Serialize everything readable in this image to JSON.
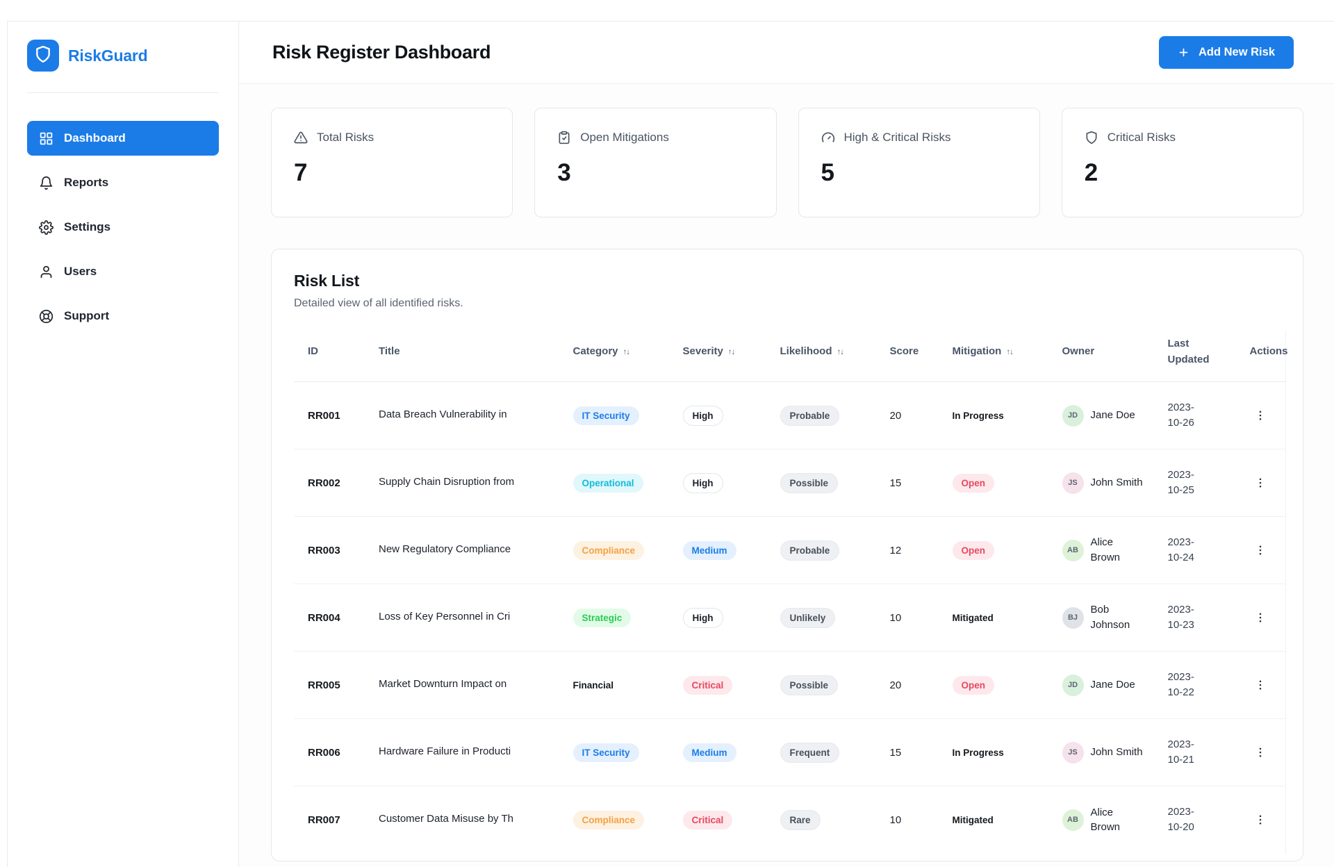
{
  "brand": {
    "name": "RiskGuard"
  },
  "sidebar": {
    "items": [
      {
        "label": "Dashboard",
        "icon": "dashboard-grid-icon",
        "active": true
      },
      {
        "label": "Reports",
        "icon": "bell-icon",
        "active": false
      },
      {
        "label": "Settings",
        "icon": "gear-icon",
        "active": false
      },
      {
        "label": "Users",
        "icon": "user-icon",
        "active": false
      },
      {
        "label": "Support",
        "icon": "life-buoy-icon",
        "active": false
      }
    ]
  },
  "header": {
    "title": "Risk Register Dashboard",
    "add_button_label": "Add New Risk"
  },
  "stats": [
    {
      "label": "Total Risks",
      "value": "7",
      "icon": "alert-triangle-icon"
    },
    {
      "label": "Open Mitigations",
      "value": "3",
      "icon": "clipboard-check-icon"
    },
    {
      "label": "High & Critical Risks",
      "value": "5",
      "icon": "gauge-icon"
    },
    {
      "label": "Critical Risks",
      "value": "2",
      "icon": "shield-icon"
    }
  ],
  "risk_list": {
    "title": "Risk List",
    "subtitle": "Detailed view of all identified risks.",
    "columns": [
      {
        "label": "ID",
        "sortable": false
      },
      {
        "label": "Title",
        "sortable": false
      },
      {
        "label": "Category",
        "sortable": true
      },
      {
        "label": "Severity",
        "sortable": true
      },
      {
        "label": "Likelihood",
        "sortable": true
      },
      {
        "label": "Score",
        "sortable": false
      },
      {
        "label": "Mitigation",
        "sortable": true
      },
      {
        "label": "Owner",
        "sortable": false
      },
      {
        "label": "Last Updated",
        "sortable": false
      },
      {
        "label": "Actions",
        "sortable": false
      }
    ],
    "rows": [
      {
        "id": "RR001",
        "title": "Data Breach Vulnerability in",
        "category": {
          "label": "IT Security",
          "variant": "blue"
        },
        "severity": {
          "label": "High",
          "variant": "outline"
        },
        "likelihood": "Probable",
        "score": "20",
        "mitigation": {
          "label": "In Progress",
          "variant": "text"
        },
        "owner": {
          "name": "Jane Doe",
          "avatar_color": "#d9f0dc"
        },
        "last_updated": "2023-10-26"
      },
      {
        "id": "RR002",
        "title": "Supply Chain Disruption from",
        "category": {
          "label": "Operational",
          "variant": "cyan"
        },
        "severity": {
          "label": "High",
          "variant": "outline"
        },
        "likelihood": "Possible",
        "score": "15",
        "mitigation": {
          "label": "Open",
          "variant": "red"
        },
        "owner": {
          "name": "John Smith",
          "avatar_color": "#f6e2ea"
        },
        "last_updated": "2023-10-25"
      },
      {
        "id": "RR003",
        "title": "New Regulatory Compliance",
        "category": {
          "label": "Compliance",
          "variant": "orange"
        },
        "severity": {
          "label": "Medium",
          "variant": "blue"
        },
        "likelihood": "Probable",
        "score": "12",
        "mitigation": {
          "label": "Open",
          "variant": "red"
        },
        "owner": {
          "name": "Alice Brown",
          "avatar_color": "#def2d8"
        },
        "last_updated": "2023-10-24"
      },
      {
        "id": "RR004",
        "title": "Loss of Key Personnel in Cri",
        "category": {
          "label": "Strategic",
          "variant": "green"
        },
        "severity": {
          "label": "High",
          "variant": "outline"
        },
        "likelihood": "Unlikely",
        "score": "10",
        "mitigation": {
          "label": "Mitigated",
          "variant": "text"
        },
        "owner": {
          "name": "Bob Johnson",
          "avatar_color": "#dfe3e8"
        },
        "last_updated": "2023-10-23"
      },
      {
        "id": "RR005",
        "title": "Market Downturn Impact on",
        "category": {
          "label": "Financial",
          "variant": "text"
        },
        "severity": {
          "label": "Critical",
          "variant": "red"
        },
        "likelihood": "Possible",
        "score": "20",
        "mitigation": {
          "label": "Open",
          "variant": "red"
        },
        "owner": {
          "name": "Jane Doe",
          "avatar_color": "#d9f0dc"
        },
        "last_updated": "2023-10-22"
      },
      {
        "id": "RR006",
        "title": "Hardware Failure in Producti",
        "category": {
          "label": "IT Security",
          "variant": "blue"
        },
        "severity": {
          "label": "Medium",
          "variant": "blue"
        },
        "likelihood": "Frequent",
        "score": "15",
        "mitigation": {
          "label": "In Progress",
          "variant": "text"
        },
        "owner": {
          "name": "John Smith",
          "avatar_color": "#f6e2ea"
        },
        "last_updated": "2023-10-21"
      },
      {
        "id": "RR007",
        "title": "Customer Data Misuse by Th",
        "category": {
          "label": "Compliance",
          "variant": "orange"
        },
        "severity": {
          "label": "Critical",
          "variant": "red"
        },
        "likelihood": "Rare",
        "score": "10",
        "mitigation": {
          "label": "Mitigated",
          "variant": "text"
        },
        "owner": {
          "name": "Alice Brown",
          "avatar_color": "#def2d8"
        },
        "last_updated": "2023-10-20"
      }
    ]
  },
  "colors": {
    "primary": "#1b7ce8",
    "badge_blue_text": "#1b7ce8",
    "badge_cyan_text": "#12bcd8",
    "badge_orange_text": "#f5a143",
    "badge_green_text": "#28cc52",
    "badge_red_text": "#e8485e"
  }
}
